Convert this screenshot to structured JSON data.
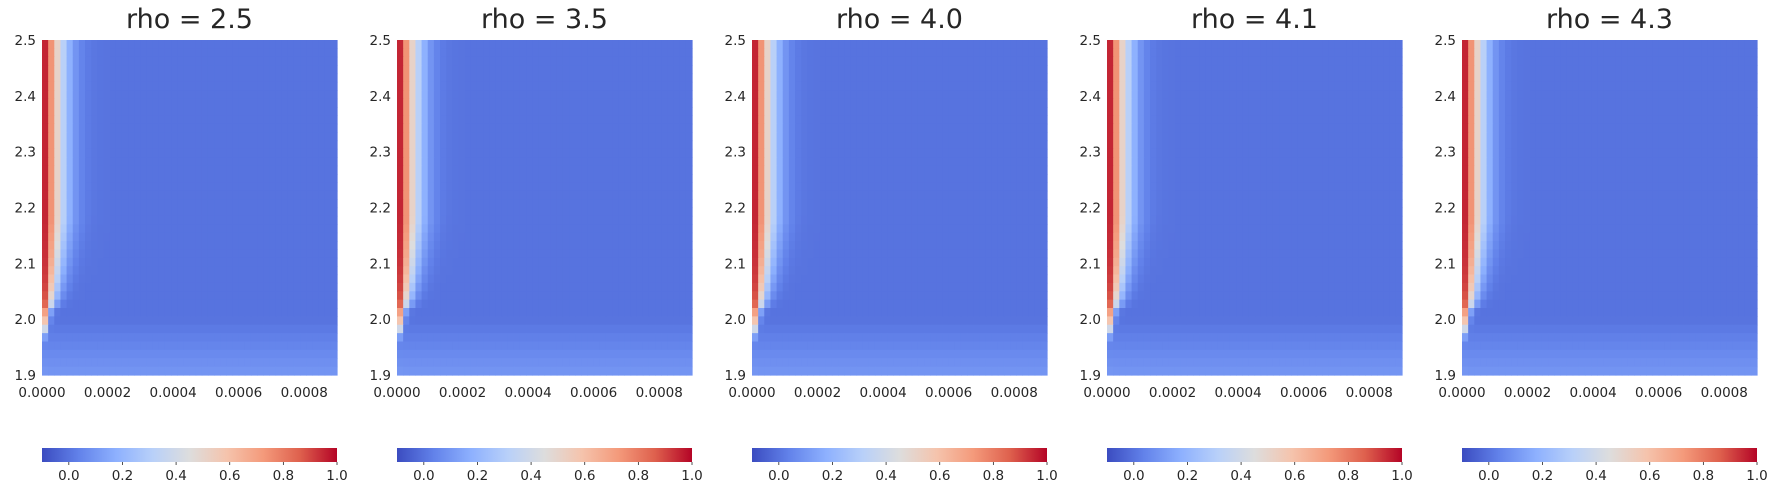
{
  "chart_data": [
    {
      "type": "heatmap",
      "title": "rho = 2.5",
      "xlabel": "",
      "ylabel": "",
      "xlim": [
        0,
        0.0009
      ],
      "ylim": [
        1.9,
        2.5
      ],
      "x_ticks": [
        "0.0000",
        "0.0002",
        "0.0004",
        "0.0006",
        "0.0008"
      ],
      "y_ticks": [
        "1.9",
        "2.0",
        "2.1",
        "2.2",
        "2.3",
        "2.4",
        "2.5"
      ],
      "colorbar": {
        "range": [
          -0.1,
          1.0
        ],
        "ticks": [
          "0.0",
          "0.2",
          "0.4",
          "0.6",
          "0.8",
          "1.0"
        ],
        "colormap": "coolwarm",
        "placement": "bottom"
      },
      "grid": false,
      "field": {
        "max_value": 1.0,
        "boundary_width_at_top": 6e-05,
        "boundary_width_at_bottom": 2e-05,
        "corner_y": 2.02,
        "background": -0.05
      }
    },
    {
      "type": "heatmap",
      "title": "rho = 3.5",
      "xlabel": "",
      "ylabel": "",
      "xlim": [
        0,
        0.0009
      ],
      "ylim": [
        1.9,
        2.5
      ],
      "x_ticks": [
        "0.0000",
        "0.0002",
        "0.0004",
        "0.0006",
        "0.0008"
      ],
      "y_ticks": [
        "1.9",
        "2.0",
        "2.1",
        "2.2",
        "2.3",
        "2.4",
        "2.5"
      ],
      "colorbar": {
        "range": [
          -0.1,
          1.0
        ],
        "ticks": [
          "0.0",
          "0.2",
          "0.4",
          "0.6",
          "0.8",
          "1.0"
        ],
        "colormap": "coolwarm",
        "placement": "bottom"
      },
      "grid": false,
      "field": {
        "max_value": 1.0,
        "boundary_width_at_top": 6e-05,
        "boundary_width_at_bottom": 2e-05,
        "corner_y": 2.02,
        "background": -0.05
      }
    },
    {
      "type": "heatmap",
      "title": "rho = 4.0",
      "xlabel": "",
      "ylabel": "",
      "xlim": [
        0,
        0.0009
      ],
      "ylim": [
        1.9,
        2.5
      ],
      "x_ticks": [
        "0.0000",
        "0.0002",
        "0.0004",
        "0.0006",
        "0.0008"
      ],
      "y_ticks": [
        "1.9",
        "2.0",
        "2.1",
        "2.2",
        "2.3",
        "2.4",
        "2.5"
      ],
      "colorbar": {
        "range": [
          -0.1,
          1.0
        ],
        "ticks": [
          "0.0",
          "0.2",
          "0.4",
          "0.6",
          "0.8",
          "1.0"
        ],
        "colormap": "coolwarm",
        "placement": "bottom"
      },
      "grid": false,
      "field": {
        "max_value": 1.0,
        "boundary_width_at_top": 6e-05,
        "boundary_width_at_bottom": 2e-05,
        "corner_y": 2.02,
        "background": -0.05
      }
    },
    {
      "type": "heatmap",
      "title": "rho = 4.1",
      "xlabel": "",
      "ylabel": "",
      "xlim": [
        0,
        0.0009
      ],
      "ylim": [
        1.9,
        2.5
      ],
      "x_ticks": [
        "0.0000",
        "0.0002",
        "0.0004",
        "0.0006",
        "0.0008"
      ],
      "y_ticks": [
        "1.9",
        "2.0",
        "2.1",
        "2.2",
        "2.3",
        "2.4",
        "2.5"
      ],
      "colorbar": {
        "range": [
          -0.1,
          1.0
        ],
        "ticks": [
          "0.0",
          "0.2",
          "0.4",
          "0.6",
          "0.8",
          "1.0"
        ],
        "colormap": "coolwarm",
        "placement": "bottom"
      },
      "grid": false,
      "field": {
        "max_value": 1.0,
        "boundary_width_at_top": 6e-05,
        "boundary_width_at_bottom": 2e-05,
        "corner_y": 2.02,
        "background": -0.05
      }
    },
    {
      "type": "heatmap",
      "title": "rho = 4.3",
      "xlabel": "",
      "ylabel": "",
      "xlim": [
        0,
        0.0009
      ],
      "ylim": [
        1.9,
        2.5
      ],
      "x_ticks": [
        "0.0000",
        "0.0002",
        "0.0004",
        "0.0006",
        "0.0008"
      ],
      "y_ticks": [
        "1.9",
        "2.0",
        "2.1",
        "2.2",
        "2.3",
        "2.4",
        "2.5"
      ],
      "colorbar": {
        "range": [
          -0.1,
          1.0
        ],
        "ticks": [
          "0.0",
          "0.2",
          "0.4",
          "0.6",
          "0.8",
          "1.0"
        ],
        "colormap": "coolwarm",
        "placement": "bottom"
      },
      "grid": false,
      "field": {
        "max_value": 1.0,
        "boundary_width_at_top": 6e-05,
        "boundary_width_at_bottom": 2e-05,
        "corner_y": 2.02,
        "background": -0.05
      }
    }
  ]
}
